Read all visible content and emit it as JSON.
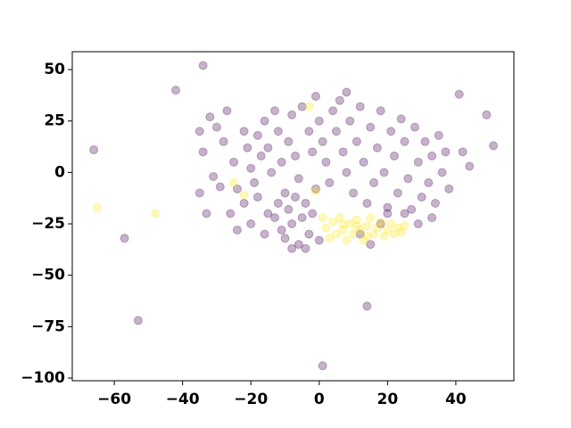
{
  "chart_data": {
    "type": "scatter",
    "xlim": [
      -72.3,
      57
    ],
    "ylim": [
      -101.3,
      58.7
    ],
    "xticks": [
      {
        "value": -60,
        "label": "−60"
      },
      {
        "value": -40,
        "label": "−40"
      },
      {
        "value": -20,
        "label": "−20"
      },
      0,
      20,
      40
    ],
    "yticks": [
      {
        "value": -100,
        "label": "−100"
      },
      {
        "value": -75,
        "label": "−75"
      },
      {
        "value": -50,
        "label": "−50"
      },
      {
        "value": -25,
        "label": "−25"
      },
      0,
      25,
      50
    ],
    "grid": false,
    "opacity": 0.3,
    "series": [
      {
        "color": "#440154",
        "x": [
          -66,
          -57,
          -53,
          -42,
          -34,
          14,
          1,
          41,
          49,
          51,
          44,
          42,
          -35,
          -34,
          -35,
          -33,
          -32,
          -30,
          -31,
          -28,
          -27,
          -25,
          -24,
          -22,
          -21,
          -20,
          -19,
          -18,
          -17,
          -16,
          -15,
          -14,
          -13,
          -12,
          -11,
          -10,
          -9,
          -8,
          -7,
          -6,
          -26,
          -24,
          -22,
          -20,
          -18,
          -16,
          -15,
          -13,
          -12,
          -11,
          -10,
          -9,
          -8,
          -7,
          -6,
          -5,
          -4,
          -3,
          -2,
          -1,
          0,
          -4,
          -8,
          -5,
          -3,
          -2,
          -1,
          0,
          1,
          2,
          3,
          4,
          5,
          6,
          7,
          8,
          8,
          9,
          10,
          11,
          12,
          13,
          14,
          15,
          16,
          17,
          18,
          19,
          20,
          21,
          22,
          23,
          24,
          25,
          26,
          27,
          28,
          29,
          30,
          31,
          32,
          33,
          34,
          35,
          36,
          37,
          38,
          33,
          29,
          25,
          20,
          15,
          12,
          18,
          -29
        ],
        "values": [
          11,
          -32,
          -72,
          40,
          52,
          -65,
          -94,
          38,
          28,
          13,
          3,
          10,
          20,
          10,
          -10,
          -20,
          27,
          22,
          -2,
          15,
          30,
          5,
          -8,
          20,
          12,
          2,
          -5,
          18,
          8,
          25,
          12,
          0,
          30,
          20,
          5,
          -10,
          15,
          28,
          8,
          -3,
          -20,
          -28,
          -15,
          -25,
          -12,
          -30,
          -20,
          -22,
          -15,
          -28,
          -32,
          -18,
          -25,
          -12,
          -35,
          -22,
          -15,
          -30,
          -20,
          -8,
          -33,
          -37,
          -37,
          32,
          20,
          10,
          37,
          25,
          15,
          5,
          -5,
          30,
          20,
          35,
          10,
          0,
          39,
          25,
          -10,
          15,
          32,
          5,
          -15,
          22,
          -5,
          12,
          30,
          0,
          -20,
          20,
          8,
          -10,
          26,
          15,
          -3,
          -18,
          22,
          5,
          -12,
          15,
          -5,
          8,
          -15,
          18,
          0,
          10,
          -8,
          -22,
          -25,
          -20,
          -17,
          -35,
          -30,
          -25,
          -7
        ]
      },
      {
        "color": "#fde725",
        "x": [
          -65,
          -48,
          -22,
          -25,
          -3,
          -1,
          2,
          3,
          4,
          5,
          6,
          7,
          8,
          9,
          10,
          11,
          12,
          13,
          14,
          15,
          16,
          17,
          18,
          19,
          20,
          21,
          22,
          23,
          24,
          25,
          1,
          7,
          11,
          14
        ],
        "values": [
          -17,
          -20,
          -11,
          -5,
          32,
          -9,
          -27,
          -32,
          -24,
          -30,
          -22,
          -28,
          -33,
          -25,
          -30,
          -23,
          -28,
          -33,
          -26,
          -22,
          -30,
          -27,
          -24,
          -31,
          -28,
          -25,
          -30,
          -27,
          -29,
          -26,
          -22,
          -25,
          -26,
          -31
        ]
      }
    ]
  }
}
